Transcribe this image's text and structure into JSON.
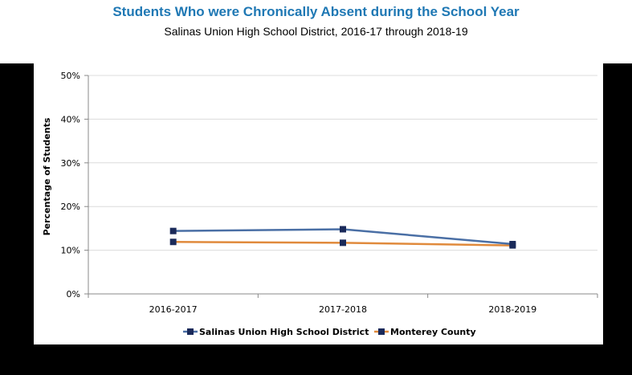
{
  "title": "Students Who were Chronically Absent during the School Year",
  "subtitle": "Salinas Union High School District, 2016-17 through 2018-19",
  "chart_data": {
    "type": "line",
    "categories": [
      "2016-2017",
      "2017-2018",
      "2018-2019"
    ],
    "series": [
      {
        "name": "Salinas Union High School District",
        "values": [
          14.4,
          14.8,
          11.4
        ],
        "color": "#4a6fa5"
      },
      {
        "name": "Monterey County",
        "values": [
          11.9,
          11.7,
          11.1
        ],
        "color": "#e08a3c"
      }
    ],
    "ylabel": "Percentage of Students",
    "xlabel": "",
    "ylim": [
      0,
      50
    ],
    "yticks": [
      "0%",
      "10%",
      "20%",
      "30%",
      "40%",
      "50%"
    ],
    "grid": true,
    "legend_position": "bottom",
    "marker_color": "#1a2a5a"
  }
}
